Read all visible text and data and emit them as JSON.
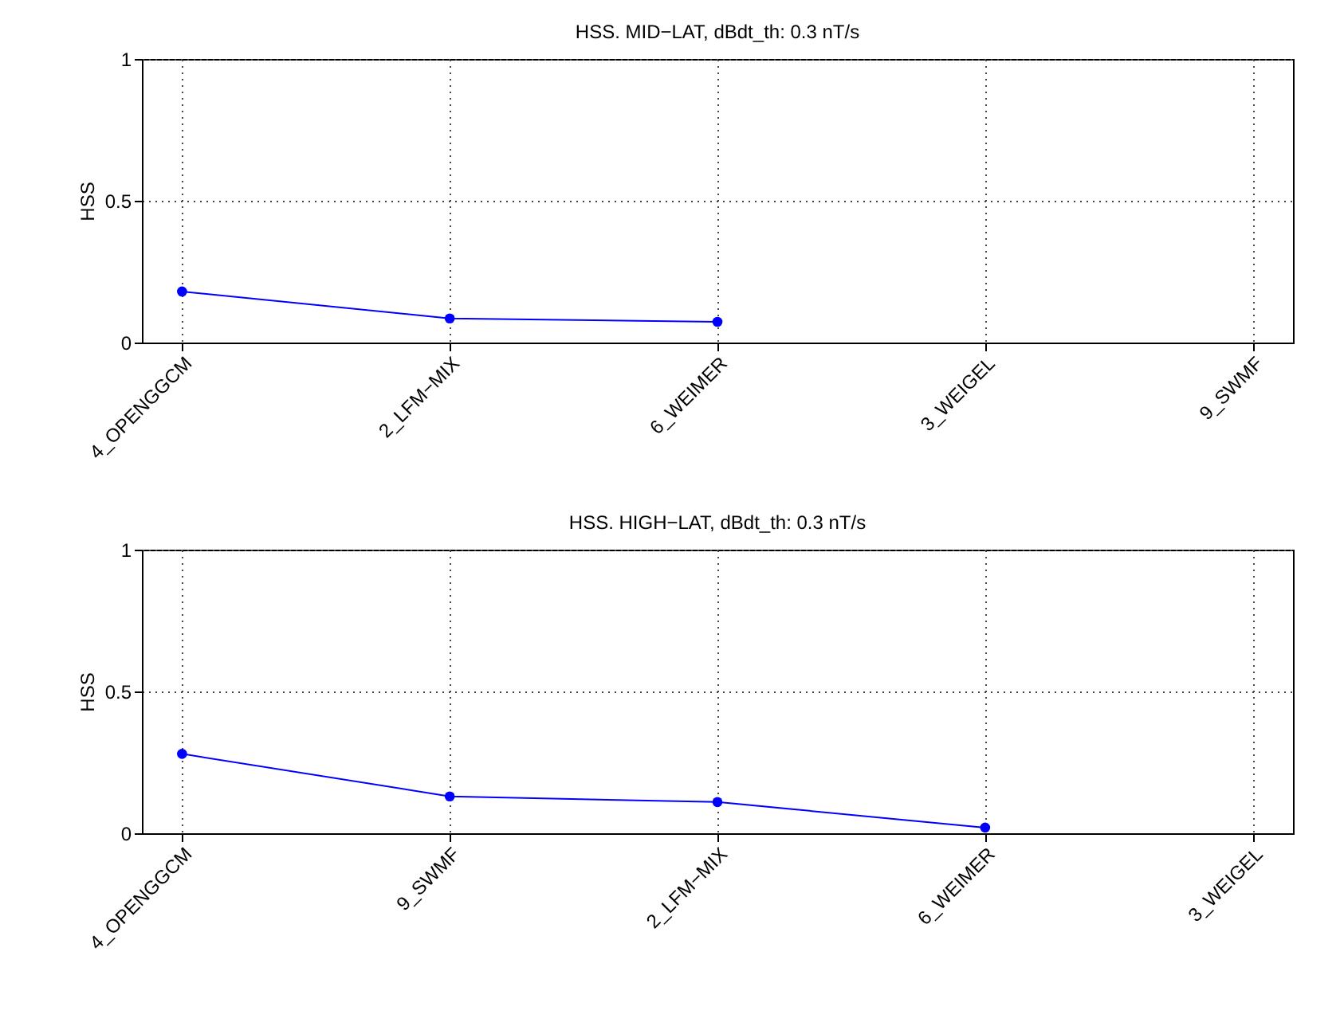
{
  "chart_data": [
    {
      "type": "line",
      "title": "HSS. MID−LAT, dBdt_th: 0.3 nT/s",
      "ylabel": "HSS",
      "categories": [
        "4_OPENGGCM",
        "2_LFM−MIX",
        "6_WEIMER",
        "3_WEIGEL",
        "9_SWMF"
      ],
      "series": [
        {
          "color": "#0000ff",
          "values": [
            0.18,
            0.085,
            0.073,
            null,
            null
          ]
        }
      ],
      "ylim": [
        0,
        1
      ],
      "yticks": [
        0,
        0.5,
        1
      ],
      "grid": true,
      "marker": "circle",
      "line_style": "solid"
    },
    {
      "type": "line",
      "title": "HSS. HIGH−LAT, dBdt_th: 0.3 nT/s",
      "ylabel": "HSS",
      "categories": [
        "4_OPENGGCM",
        "9_SWMF",
        "2_LFM−MIX",
        "6_WEIMER",
        "3_WEIGEL"
      ],
      "series": [
        {
          "color": "#0000ff",
          "values": [
            0.28,
            0.13,
            0.11,
            0.02,
            null
          ]
        }
      ],
      "ylim": [
        0,
        1
      ],
      "yticks": [
        0,
        0.5,
        1
      ],
      "grid": true,
      "marker": "circle",
      "line_style": "solid"
    }
  ]
}
